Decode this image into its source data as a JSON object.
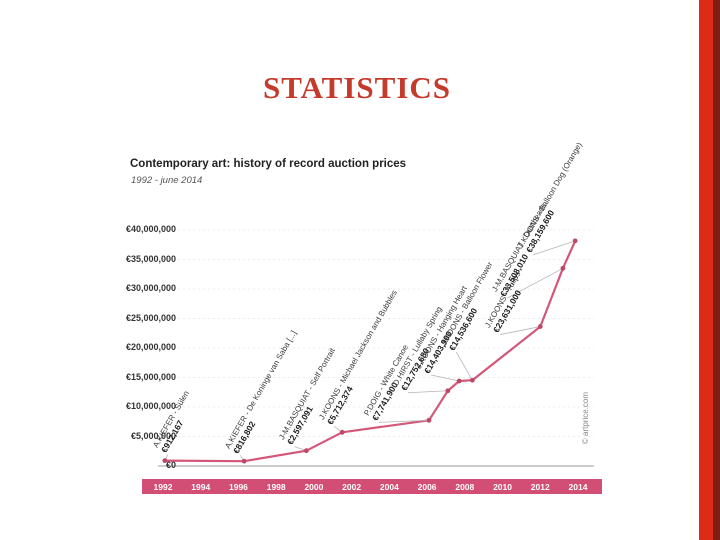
{
  "slide": {
    "title": "STATISTICS"
  },
  "decor": {
    "accent_red": "#dd2b17",
    "accent_dark_red": "#7e1d12",
    "title_color": "#c43a2b"
  },
  "chart_data": {
    "type": "line",
    "title": "Contemporary art: history of record auction prices",
    "subtitle": "1992 - june 2014",
    "watermark": "© artprice.com",
    "line_color": "#d4577a",
    "marker_color": "#bd4868",
    "axis_band_color": "#d34e74",
    "grid": "off",
    "legend": "none",
    "ylim": [
      0,
      40000000
    ],
    "y_ticks": [
      40000000,
      35000000,
      30000000,
      25000000,
      20000000,
      15000000,
      10000000,
      5000000,
      0
    ],
    "y_tick_labels": [
      "€40,000,000",
      "€35,000,000",
      "€30,000,000",
      "€25,000,000",
      "€20,000,000",
      "€15,000,000",
      "€10,000,000",
      "€5,000,000",
      "€0"
    ],
    "x_ticks": [
      1992,
      1994,
      1996,
      1998,
      2000,
      2002,
      2004,
      2006,
      2008,
      2010,
      2012,
      2014
    ],
    "points": [
      {
        "year": 1992.1,
        "value": 912167,
        "artist_work": "A.KIEFER - Sülen",
        "price_label": "€912,167"
      },
      {
        "year": 1996.3,
        "value": 816802,
        "artist_work": "A.KIEFER - De Koninge van Saba [...]",
        "price_label": "€816,802"
      },
      {
        "year": 1999.6,
        "value": 2597091,
        "artist_work": "J-M.BASQUIAT - Self Portrait",
        "price_label": "€2,597,091"
      },
      {
        "year": 2001.5,
        "value": 5712374,
        "artist_work": "J.KOONS - Michael Jackson and Bubbles",
        "price_label": "€5,712,374"
      },
      {
        "year": 2006.1,
        "value": 7741900,
        "artist_work": "P.DOIG - White Canoe",
        "price_label": "€7,741,900"
      },
      {
        "year": 2007.1,
        "value": 12752680,
        "artist_work": "D.HIRST - Lullaby Spring",
        "price_label": "€12,752,680"
      },
      {
        "year": 2007.7,
        "value": 14403900,
        "artist_work": "J.KOONS - Hanging Heart",
        "price_label": "€14,403,900"
      },
      {
        "year": 2008.4,
        "value": 14536600,
        "artist_work": "J.KOONS - Balloon Flower",
        "price_label": "€14,536,600"
      },
      {
        "year": 2012.0,
        "value": 23631000,
        "artist_work": "J.KOONS - Tulips",
        "price_label": "€23,631,000"
      },
      {
        "year": 2013.2,
        "value": 33508010,
        "artist_work": "J-M.BASQUIAT - Dustheads",
        "price_label": "€33,508,010"
      },
      {
        "year": 2013.85,
        "value": 38159600,
        "artist_work": "J.KOONS - Balloon Dog (Orange)",
        "price_label": "€38,159,600"
      }
    ]
  }
}
